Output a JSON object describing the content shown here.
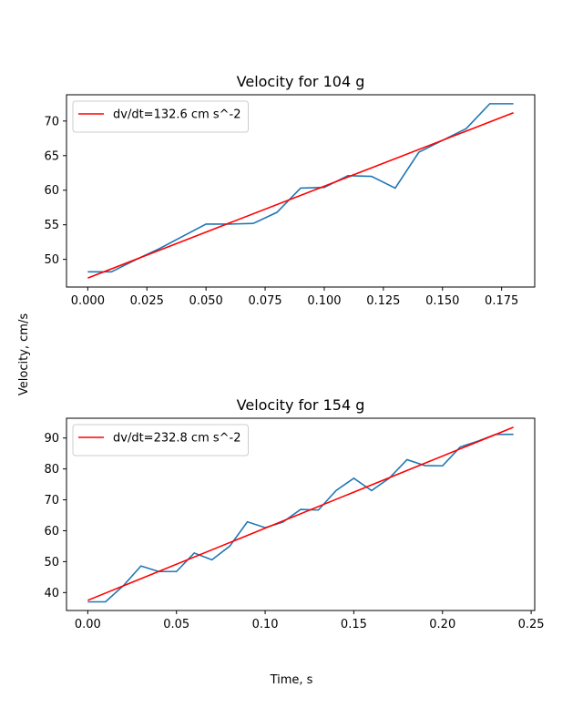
{
  "figure": {
    "xlabel": "Time, s",
    "ylabel": "Velocity, cm/s"
  },
  "chart_data": [
    {
      "type": "line",
      "title": "Velocity for 104 g",
      "xlabel": "",
      "ylabel": "",
      "xlim": [
        -0.009,
        0.189
      ],
      "ylim": [
        46.0,
        73.8
      ],
      "xticks": [
        0.0,
        0.025,
        0.05,
        0.075,
        0.1,
        0.125,
        0.15,
        0.175
      ],
      "xtick_labels": [
        "0.000",
        "0.025",
        "0.050",
        "0.075",
        "0.100",
        "0.125",
        "0.150",
        "0.175"
      ],
      "yticks": [
        50,
        55,
        60,
        65,
        70
      ],
      "ytick_labels": [
        "50",
        "55",
        "60",
        "65",
        "70"
      ],
      "grid": false,
      "legend": "upper-left",
      "series": [
        {
          "name": "",
          "color": "#1f77b4",
          "x": [
            0.0,
            0.01,
            0.02,
            0.03,
            0.04,
            0.05,
            0.06,
            0.07,
            0.08,
            0.09,
            0.1,
            0.11,
            0.12,
            0.13,
            0.14,
            0.15,
            0.16,
            0.17,
            0.18
          ],
          "y": [
            48.2,
            48.2,
            49.9,
            51.5,
            53.3,
            55.1,
            55.1,
            55.2,
            56.8,
            60.3,
            60.4,
            62.1,
            62.0,
            60.3,
            65.5,
            67.2,
            68.9,
            72.5,
            72.5
          ]
        },
        {
          "name": "dv/dt=132.6 cm s^-2",
          "color": "#ff0000",
          "x": [
            0.0,
            0.18
          ],
          "y": [
            47.3,
            71.2
          ]
        }
      ]
    },
    {
      "type": "line",
      "title": "Velocity for 154 g",
      "xlabel": "",
      "ylabel": "",
      "xlim": [
        -0.012,
        0.252
      ],
      "ylim": [
        34.2,
        96.4
      ],
      "xticks": [
        0.0,
        0.05,
        0.1,
        0.15,
        0.2,
        0.25
      ],
      "xtick_labels": [
        "0.00",
        "0.05",
        "0.10",
        "0.15",
        "0.20",
        "0.25"
      ],
      "yticks": [
        40,
        50,
        60,
        70,
        80,
        90
      ],
      "ytick_labels": [
        "40",
        "50",
        "60",
        "70",
        "80",
        "90"
      ],
      "grid": false,
      "legend": "upper-left",
      "series": [
        {
          "name": "",
          "color": "#1f77b4",
          "x": [
            0.0,
            0.01,
            0.02,
            0.03,
            0.04,
            0.05,
            0.06,
            0.07,
            0.08,
            0.09,
            0.1,
            0.11,
            0.12,
            0.13,
            0.14,
            0.15,
            0.16,
            0.17,
            0.18,
            0.19,
            0.2,
            0.21,
            0.22,
            0.23,
            0.24
          ],
          "y": [
            37.0,
            37.0,
            42.2,
            48.6,
            46.8,
            46.8,
            52.8,
            50.6,
            55.0,
            62.9,
            61.0,
            62.8,
            66.9,
            66.7,
            73.0,
            77.0,
            73.0,
            77.0,
            83.0,
            81.1,
            81.0,
            87.1,
            89.0,
            91.2,
            91.2
          ]
        },
        {
          "name": "dv/dt=232.8 cm s^-2",
          "color": "#ff0000",
          "x": [
            0.0,
            0.24
          ],
          "y": [
            37.5,
            93.5
          ]
        }
      ]
    }
  ]
}
